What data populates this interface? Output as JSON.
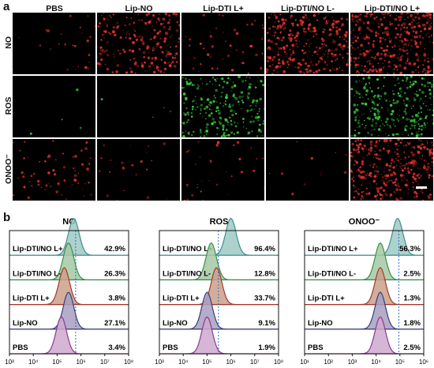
{
  "panel_a": {
    "letter": "a",
    "columns": [
      "PBS",
      "Lip-NO",
      "Lip-DTI L+",
      "Lip-DTI/NO L-",
      "Lip-DTI/NO L+"
    ],
    "rows": [
      {
        "label": "NO",
        "color": "#e8322c",
        "density": [
          0.06,
          0.55,
          0.12,
          0.8,
          0.95
        ]
      },
      {
        "label": "ROS",
        "color": "#3cd23c",
        "density": [
          0.01,
          0.01,
          0.6,
          0.0,
          0.7
        ]
      },
      {
        "label": "ONOO⁻",
        "color": "#e8322c",
        "density": [
          0.15,
          0.05,
          0.08,
          0.03,
          0.9
        ]
      }
    ]
  },
  "panel_b": {
    "letter": "b",
    "tick_labels": [
      "10³",
      "10⁴",
      "10⁵",
      "10⁶",
      "10⁷",
      "10⁸"
    ],
    "tick_labels_onoo": [
      "10¹",
      "10²",
      "10³",
      "10⁴",
      "10⁵",
      "10⁶"
    ],
    "samples": [
      "Lip-DTI/NO L+",
      "Lip-DTI/NO L-",
      "Lip-DTI L+",
      "Lip-NO",
      "PBS"
    ],
    "sample_colors": [
      "#3e8f8c",
      "#3d8d4b",
      "#a0382c",
      "#3a3f76",
      "#8b3a8f"
    ],
    "sample_fills": [
      "#9fc9c4",
      "#a4c9a4",
      "#caa08a",
      "#a89fbf",
      "#cfa9cf"
    ]
  },
  "chart_data": [
    {
      "type": "area",
      "title": "NO",
      "x_scale": "log",
      "xlim": [
        1000,
        100000000
      ],
      "series": [
        {
          "name": "Lip-DTI/NO L+",
          "percent": "42.9%",
          "peak_x": 500000
        },
        {
          "name": "Lip-DTI/NO L-",
          "percent": "26.3%",
          "peak_x": 300000
        },
        {
          "name": "Lip-DTI L+",
          "percent": "3.8%",
          "peak_x": 200000
        },
        {
          "name": "Lip-NO",
          "percent": "27.1%",
          "peak_x": 300000
        },
        {
          "name": "PBS",
          "percent": "3.4%",
          "peak_x": 150000
        }
      ],
      "gate_x": 600000
    },
    {
      "type": "area",
      "title": "ROS",
      "x_scale": "log",
      "xlim": [
        1000,
        100000000
      ],
      "series": [
        {
          "name": "Lip-DTI/NO L+",
          "percent": "96.4%",
          "peak_x": 1000000
        },
        {
          "name": "Lip-DTI/NO L-",
          "percent": "12.8%",
          "peak_x": 150000
        },
        {
          "name": "Lip-DTI L+",
          "percent": "33.7%",
          "peak_x": 250000
        },
        {
          "name": "Lip-NO",
          "percent": "9.1%",
          "peak_x": 100000
        },
        {
          "name": "PBS",
          "percent": "1.9%",
          "peak_x": 100000
        }
      ],
      "gate_x": 300000
    },
    {
      "type": "area",
      "title": "ONOO⁻",
      "x_scale": "log",
      "xlim": [
        10,
        1000000
      ],
      "series": [
        {
          "name": "Lip-DTI/NO L+",
          "percent": "56.3%",
          "peak_x": 80000
        },
        {
          "name": "Lip-DTI/NO L-",
          "percent": "2.5%",
          "peak_x": 15000
        },
        {
          "name": "Lip-DTI L+",
          "percent": "1.3%",
          "peak_x": 15000
        },
        {
          "name": "Lip-NO",
          "percent": "1.8%",
          "peak_x": 15000
        },
        {
          "name": "PBS",
          "percent": "2.5%",
          "peak_x": 15000
        }
      ],
      "gate_x": 90000
    }
  ]
}
